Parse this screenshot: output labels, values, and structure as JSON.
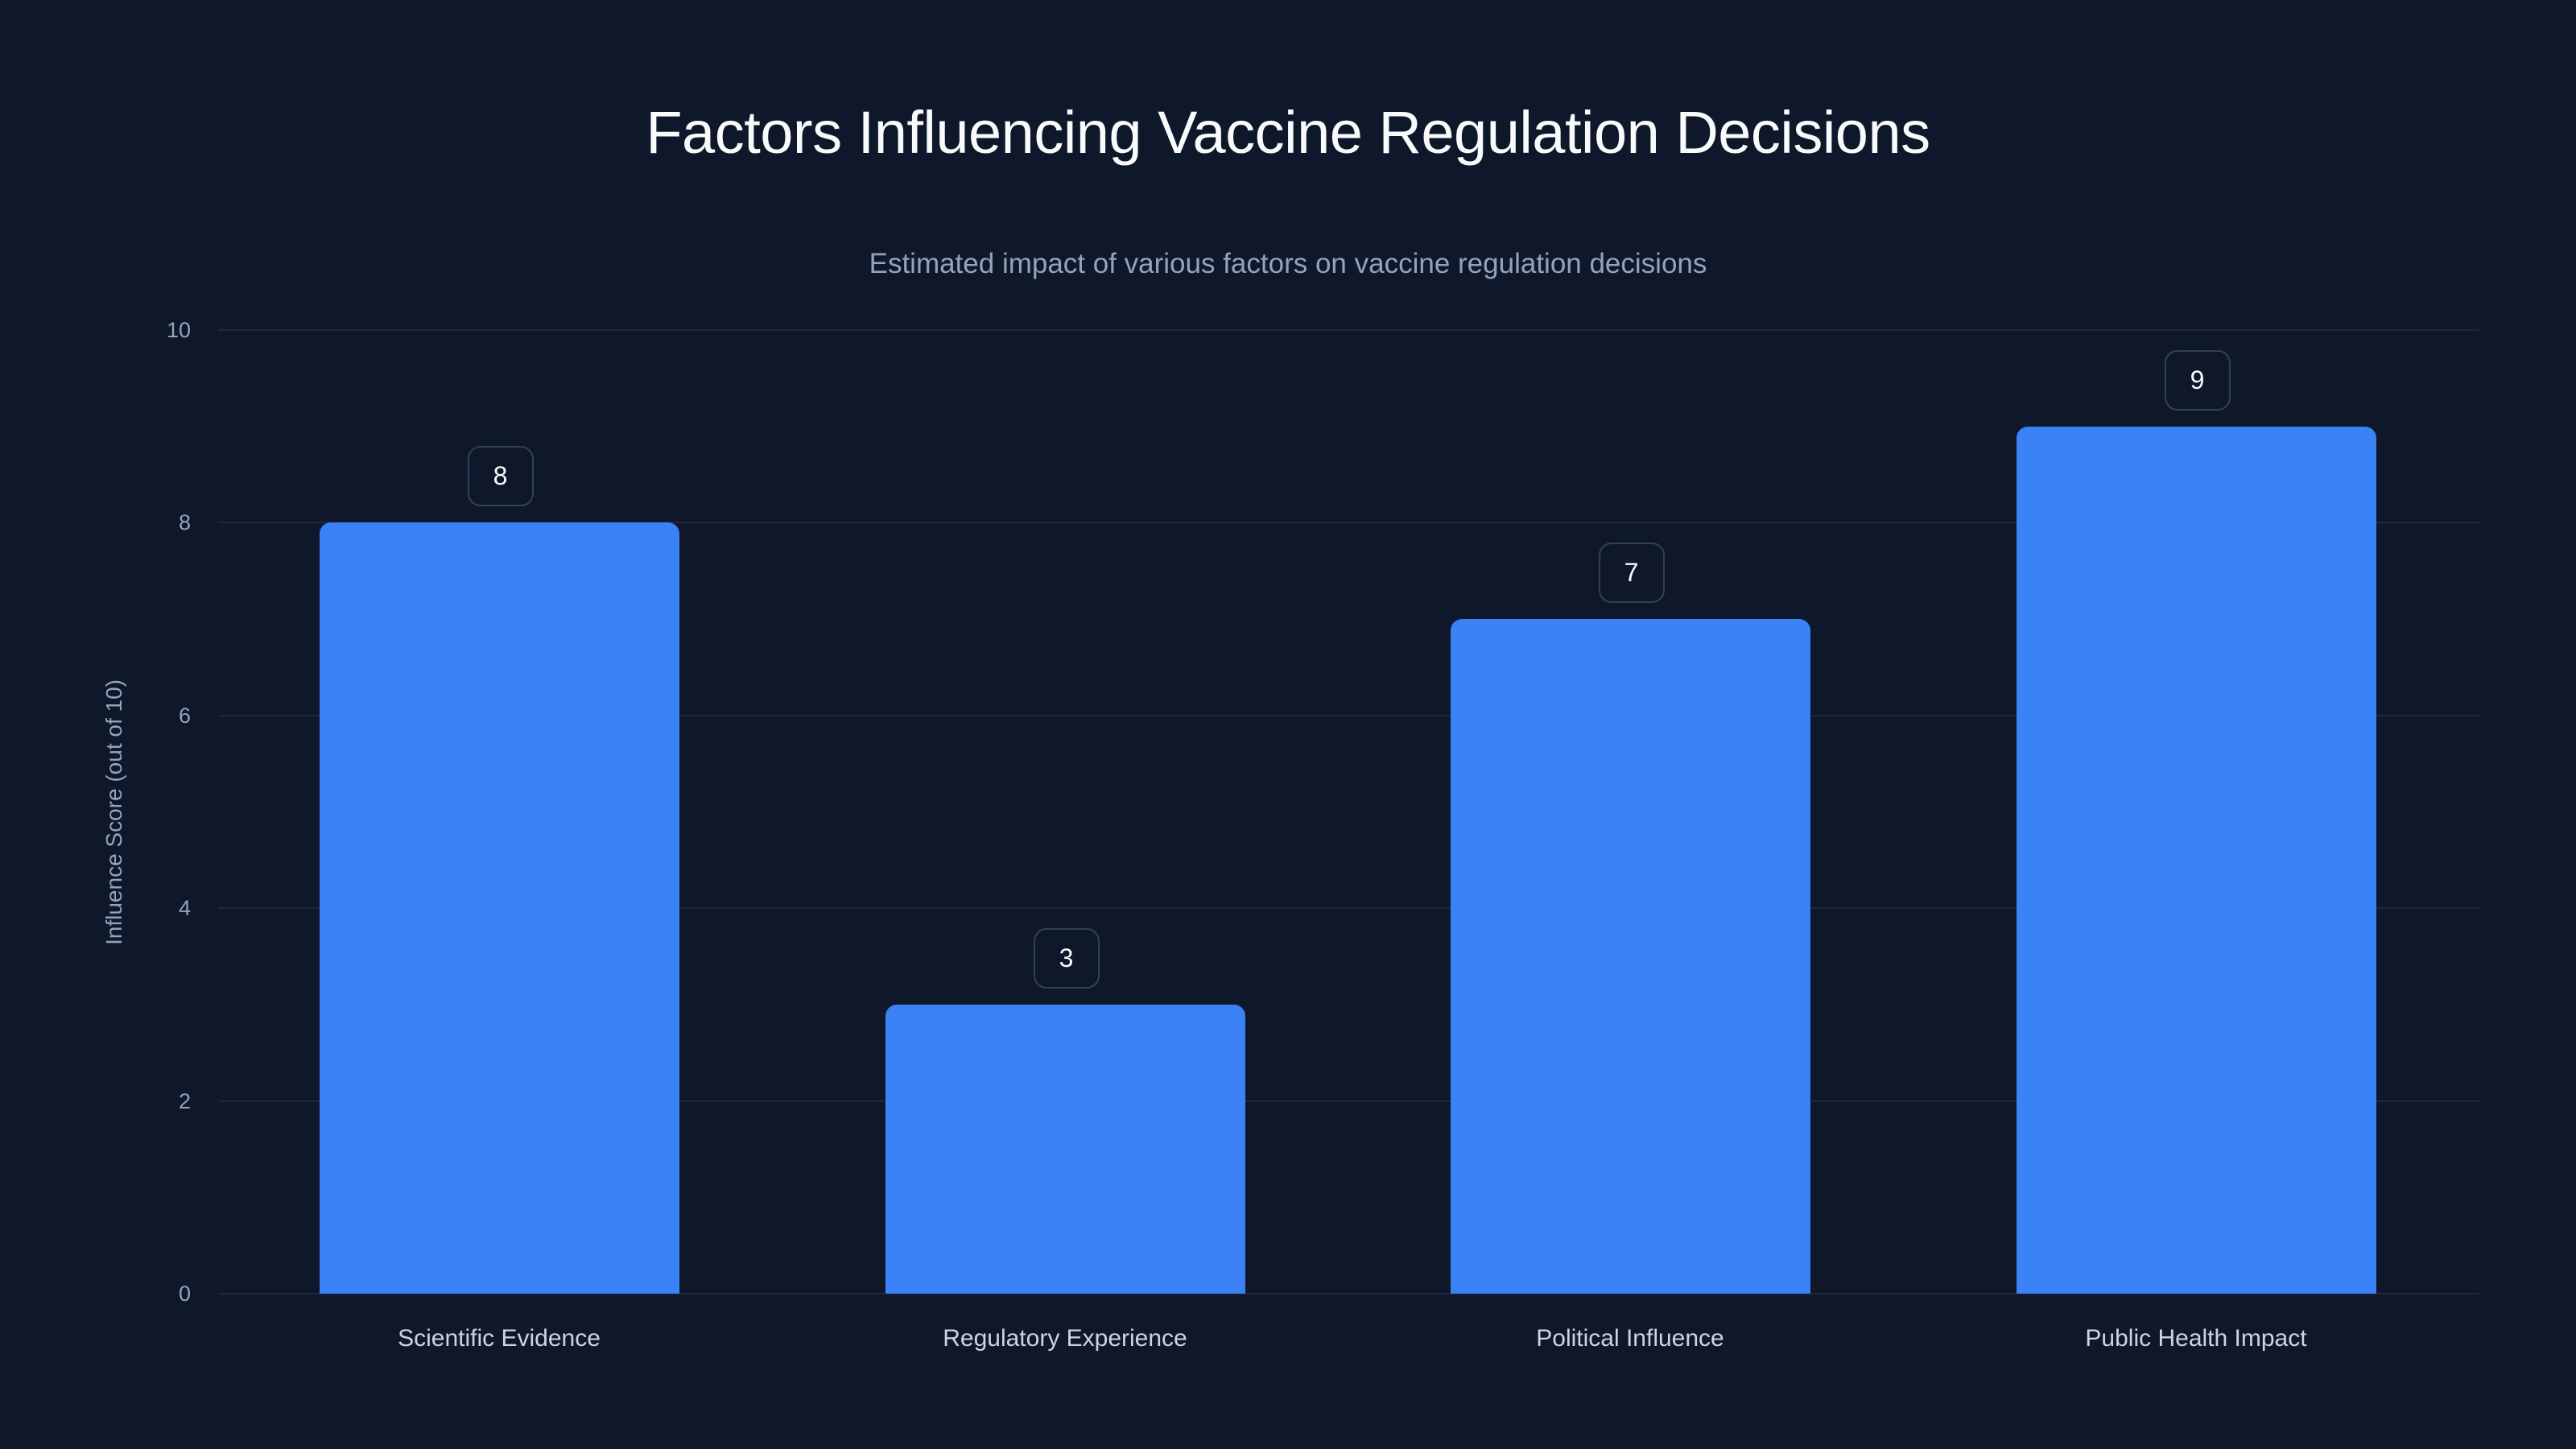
{
  "chart_data": {
    "type": "bar",
    "title": "Factors Influencing Vaccine Regulation Decisions",
    "subtitle": "Estimated impact of various factors on vaccine regulation decisions",
    "xlabel": "",
    "ylabel": "Influence Score (out of 10)",
    "categories": [
      "Scientific Evidence",
      "Regulatory Experience",
      "Political Influence",
      "Public Health Impact"
    ],
    "values": [
      8,
      3,
      7,
      9
    ],
    "ylim": [
      0,
      10
    ],
    "yticks": [
      "0",
      "2",
      "4",
      "6",
      "8",
      "10"
    ],
    "grid": true,
    "legend": null,
    "data_labels": [
      "8",
      "3",
      "7",
      "9"
    ],
    "colors": {
      "bar": "#3B82F6",
      "background": "#0F172A",
      "grid": "#1E293B",
      "text": "#F8FAFC",
      "muted": "#94A3B8"
    }
  }
}
